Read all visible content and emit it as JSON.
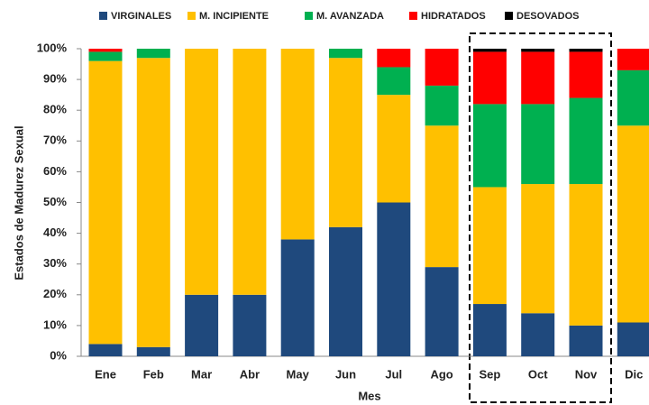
{
  "chart_data": {
    "type": "stacked_bar",
    "y_label": "Estados de Madurez Sexual",
    "x_label": "Mes",
    "categories": [
      "Ene",
      "Feb",
      "Mar",
      "Abr",
      "May",
      "Jun",
      "Jul",
      "Ago",
      "Sep",
      "Oct",
      "Nov",
      "Dic"
    ],
    "series": [
      {
        "name": "VIRGINALES",
        "color": "#1f497d",
        "values": [
          4,
          3,
          20,
          20,
          38,
          42,
          50,
          29,
          17,
          14,
          10,
          11
        ]
      },
      {
        "name": "M. INCIPIENTE",
        "color": "#ffc000",
        "values": [
          92,
          94,
          80,
          80,
          62,
          55,
          35,
          46,
          38,
          42,
          46,
          64
        ]
      },
      {
        "name": "M. AVANZADA",
        "color": "#00b050",
        "values": [
          3,
          3,
          0,
          0,
          0,
          3,
          9,
          13,
          27,
          26,
          28,
          18
        ]
      },
      {
        "name": "HIDRATADOS",
        "color": "#ff0000",
        "values": [
          1,
          0,
          0,
          0,
          0,
          0,
          6,
          12,
          17,
          17,
          15,
          7
        ]
      },
      {
        "name": "DESOVADOS",
        "color": "#000000",
        "values": [
          0,
          0,
          0,
          0,
          0,
          0,
          0,
          0,
          1,
          1,
          1,
          0
        ]
      }
    ],
    "ylim": [
      0,
      100
    ],
    "yticks": [
      {
        "value": 0,
        "label": "0%"
      },
      {
        "value": 10,
        "label": "10%"
      },
      {
        "value": 20,
        "label": "20%"
      },
      {
        "value": 30,
        "label": "30%"
      },
      {
        "value": 40,
        "label": "40%"
      },
      {
        "value": 50,
        "label": "50%"
      },
      {
        "value": 60,
        "label": "60%"
      },
      {
        "value": 70,
        "label": "70%"
      },
      {
        "value": 80,
        "label": "80%"
      },
      {
        "value": 90,
        "label": "90%"
      },
      {
        "value": 100,
        "label": "100%"
      }
    ]
  }
}
